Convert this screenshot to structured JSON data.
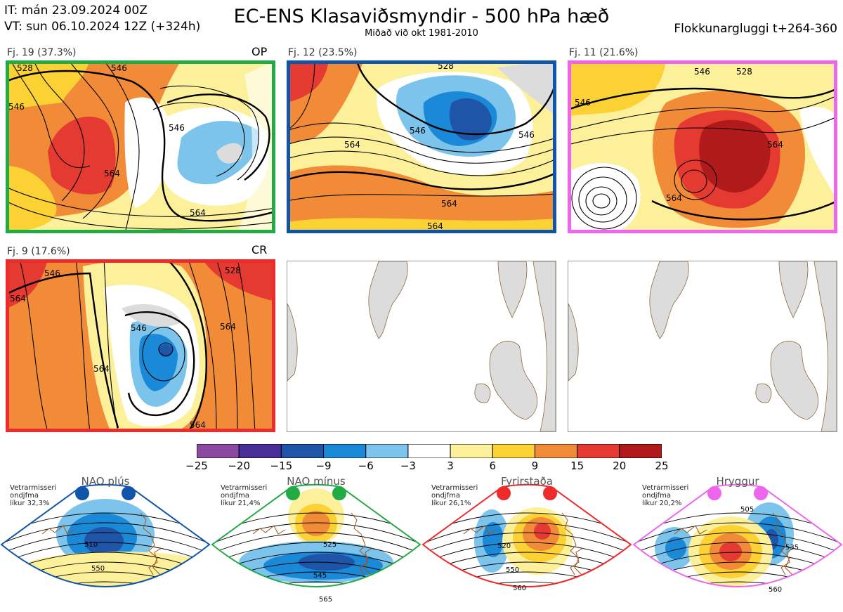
{
  "header": {
    "init_time": "IT: mán 23.09.2024 00Z",
    "valid_time": "VT: sun 06.10.2024 12Z  (+324h)",
    "title": "EC-ENS Klasaviðsmyndir - 500 hPa hæð",
    "subtitle": "Miðað við okt 1981-2010",
    "window": "Flokkunargluggi t+264-360"
  },
  "panels": [
    {
      "label": "Fj. 19 (37.3%)",
      "tag": "OP",
      "frame_color": "#22aa44",
      "contours": [
        "528",
        "546",
        "546",
        "546",
        "564",
        "564"
      ]
    },
    {
      "label": "Fj. 12 (23.5%)",
      "tag": "",
      "frame_color": "#1155aa",
      "contours": [
        "528",
        "546",
        "546",
        "564",
        "564",
        "564"
      ]
    },
    {
      "label": "Fj. 11 (21.6%)",
      "tag": "",
      "frame_color": "#ee66ee",
      "contours": [
        "546",
        "546",
        "564",
        "564",
        "528"
      ]
    },
    {
      "label": "Fj. 9 (17.6%)",
      "tag": "CR",
      "frame_color": "#ee2b2b",
      "contours": [
        "564",
        "546",
        "546",
        "564",
        "564",
        "564",
        "528"
      ]
    }
  ],
  "colorbar": {
    "ticks": [
      "−25",
      "−20",
      "−15",
      "−9",
      "−6",
      "−3",
      "3",
      "6",
      "9",
      "15",
      "20",
      "25"
    ],
    "colors": [
      "#8b4aa0",
      "#4a2e98",
      "#1f55a8",
      "#1a8ad8",
      "#7cc4ec",
      "#ffffff",
      "#fdf09a",
      "#fcd133",
      "#f28b38",
      "#e53a32",
      "#b01a1a"
    ]
  },
  "regimes": [
    {
      "name": "NAO plús",
      "note": [
        "Vetrarmisseri",
        "ondjfma",
        "líkur 32,3%"
      ],
      "color": "#1155aa",
      "contours": [
        "510",
        "550"
      ]
    },
    {
      "name": "NAO mínus",
      "note": [
        "Vetrarmisseri",
        "ondjfma",
        "líkur 21,4%"
      ],
      "color": "#22aa44",
      "contours": [
        "525",
        "545",
        "565"
      ]
    },
    {
      "name": "Fyrirstaða",
      "note": [
        "Vetrarmisseri",
        "ondjfma",
        "líkur 26,1%"
      ],
      "color": "#ee2b2b",
      "contours": [
        "520",
        "550",
        "560"
      ]
    },
    {
      "name": "Hryggur",
      "note": [
        "Vetrarmisseri",
        "ondjfma",
        "líkur 20,2%"
      ],
      "color": "#ee66ee",
      "contours": [
        "505",
        "535",
        "560"
      ]
    }
  ]
}
